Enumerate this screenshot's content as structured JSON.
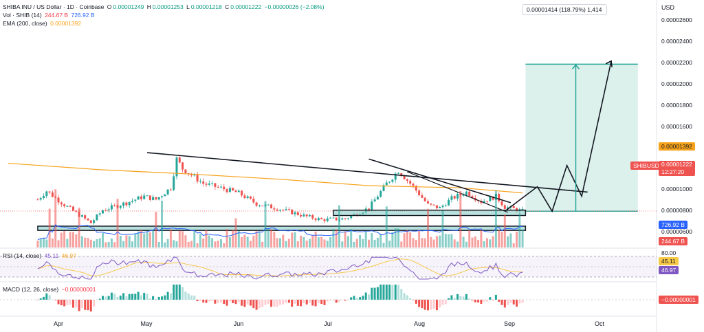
{
  "header": {
    "symbol": "SHIBA INU / US Dollar · 1D · Coinbase",
    "open_label": "O",
    "open": "0.00001249",
    "high_label": "H",
    "high": "0.00001253",
    "low_label": "L",
    "low": "0.00001218",
    "close_label": "C",
    "close": "0.00001222",
    "change": "−0.00000026 (−2.08%)",
    "vol_label": "Vol · SHIB (14)",
    "vol_value1": "244.67 B",
    "vol_value2": "726.92 B",
    "ema_label": "EMA (200, close)",
    "ema_value": "0.00001392"
  },
  "price_axis": {
    "currency": "USD",
    "ticks": [
      "0.00002600",
      "0.00002400",
      "0.00002200",
      "0.00002000",
      "0.00001800",
      "0.00001600",
      "0.00001000",
      "0.00000800",
      "0.00000600"
    ],
    "ema_tag": "0.00001392",
    "symbol_tag": "SHIBUSD",
    "price_tag": "0.00001222",
    "countdown": "12:27:20",
    "vol_tag1": "726.92 B",
    "vol_tag2": "244.67 B"
  },
  "measure_callout": "0.00001414 (118.79%) 1,414",
  "rsi": {
    "label": "RSI (14, close)",
    "value1": "45.11",
    "value2": "46.97",
    "axis_top": "80.00",
    "tag1": "46.97",
    "tag2": "45.11"
  },
  "macd": {
    "label": "MACD (12, 26, close)",
    "value": "−0.00000001",
    "tag": "−0.00000001"
  },
  "months": [
    "Apr",
    "May",
    "Jun",
    "Jul",
    "Aug",
    "Sep",
    "Oct"
  ],
  "colors": {
    "up": "#26a69a",
    "down": "#ef5350",
    "ema": "#f7a21b",
    "vol_ma": "#2962ff",
    "rsi": "#7e57c2",
    "rsi_ma": "#f7c948",
    "target_fill": "#d7efe9",
    "zone": "#7fcbc2"
  },
  "chart_data": {
    "type": "candlestick",
    "title": "SHIBA INU / US Dollar · 1D · Coinbase",
    "xlabel": "",
    "ylabel": "USD",
    "ylim": [
      9.2e-06,
      2.72e-05
    ],
    "x_range": [
      "2024-03-25",
      "2024-10-10"
    ],
    "ohlc_anchors": [
      {
        "date": "2024-03-25",
        "close": 1.33e-05
      },
      {
        "date": "2024-03-28",
        "close": 1.41e-05
      },
      {
        "date": "2024-04-03",
        "close": 1.28e-05
      },
      {
        "date": "2024-04-12",
        "close": 1.11e-05
      },
      {
        "date": "2024-04-16",
        "close": 1.23e-05
      },
      {
        "date": "2024-04-24",
        "close": 1.3e-05
      },
      {
        "date": "2024-04-30",
        "close": 1.36e-05
      },
      {
        "date": "2024-05-04",
        "close": 1.33e-05
      },
      {
        "date": "2024-05-09",
        "close": 1.44e-05
      },
      {
        "date": "2024-05-11",
        "close": 1.71e-05
      },
      {
        "date": "2024-05-13",
        "close": 1.62e-05
      },
      {
        "date": "2024-05-20",
        "close": 1.48e-05
      },
      {
        "date": "2024-05-27",
        "close": 1.43e-05
      },
      {
        "date": "2024-06-01",
        "close": 1.39e-05
      },
      {
        "date": "2024-06-07",
        "close": 1.29e-05
      },
      {
        "date": "2024-06-15",
        "close": 1.24e-05
      },
      {
        "date": "2024-06-24",
        "close": 1.17e-05
      },
      {
        "date": "2024-06-29",
        "close": 1.14e-05
      },
      {
        "date": "2024-07-07",
        "close": 1.15e-05
      },
      {
        "date": "2024-07-15",
        "close": 1.25e-05
      },
      {
        "date": "2024-07-21",
        "close": 1.48e-05
      },
      {
        "date": "2024-07-25",
        "close": 1.6e-05
      },
      {
        "date": "2024-07-30",
        "close": 1.45e-05
      },
      {
        "date": "2024-08-04",
        "close": 1.28e-05
      },
      {
        "date": "2024-08-08",
        "close": 1.25e-05
      },
      {
        "date": "2024-08-12",
        "close": 1.34e-05
      },
      {
        "date": "2024-08-17",
        "close": 1.4e-05
      },
      {
        "date": "2024-08-22",
        "close": 1.31e-05
      },
      {
        "date": "2024-08-27",
        "close": 1.36e-05
      },
      {
        "date": "2024-08-30",
        "close": 1.26e-05
      },
      {
        "date": "2024-09-05",
        "close": 1.222e-05
      }
    ],
    "ema200": [
      {
        "date": "2024-03-15",
        "value": 1.67e-05
      },
      {
        "date": "2024-04-15",
        "value": 1.61e-05
      },
      {
        "date": "2024-05-15",
        "value": 1.57e-05
      },
      {
        "date": "2024-06-15",
        "value": 1.52e-05
      },
      {
        "date": "2024-07-15",
        "value": 1.46e-05
      },
      {
        "date": "2024-08-15",
        "value": 1.44e-05
      },
      {
        "date": "2024-09-05",
        "value": 1.392e-05
      }
    ],
    "drawings": {
      "descending_trendline": [
        [
          "2024-05-01",
          1.77e-05
        ],
        [
          "2024-09-27",
          1.4e-05
        ]
      ],
      "upper_trendline_2": [
        [
          "2024-07-15",
          1.71e-05
        ],
        [
          "2024-09-01",
          1.3e-05
        ]
      ],
      "support_zone": {
        "from": "2024-07-03",
        "to": "2024-09-06",
        "low": 1.18e-05,
        "high": 1.23e-05
      },
      "long_term_support": {
        "from": "2024-03-25",
        "to": "2024-09-06",
        "low": 1.04e-05,
        "high": 1.08e-05
      },
      "target_zone": {
        "from": "2024-09-06",
        "to": "2024-10-14",
        "low": 1.22e-05,
        "high": 2.6e-05
      },
      "projection_path": [
        [
          "2024-08-30",
          1.22e-05
        ],
        [
          "2024-09-10",
          1.45e-05
        ],
        [
          "2024-09-15",
          1.22e-05
        ],
        [
          "2024-09-20",
          1.65e-05
        ],
        [
          "2024-09-25",
          1.36e-05
        ],
        [
          "2024-10-05",
          2.63e-05
        ]
      ],
      "vertical_arrow": {
        "date": "2024-09-23",
        "from": 1.22e-05,
        "to": 2.6e-05
      }
    },
    "volume_latest": "244.67 B",
    "volume_ma_latest": "726.92 B",
    "rsi_latest": 45.11,
    "rsi_ma_latest": 46.97,
    "macd_latest": -1e-08
  }
}
